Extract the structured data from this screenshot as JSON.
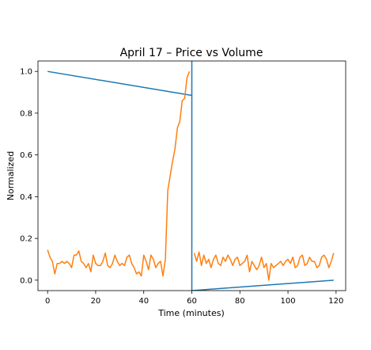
{
  "chart_data": {
    "type": "line",
    "title": "April 17 – Price vs Volume",
    "xlabel": "Time (minutes)",
    "ylabel": "Normalized",
    "xlim": [
      -4,
      124
    ],
    "ylim": [
      -0.05,
      1.05
    ],
    "xticks": [
      0,
      20,
      40,
      60,
      80,
      100,
      120
    ],
    "yticks": [
      0.0,
      0.2,
      0.4,
      0.6,
      0.8,
      1.0
    ],
    "grid": false,
    "legend": "none",
    "series": [
      {
        "color": "#1f77b4",
        "x": [
          0,
          60,
          60,
          60,
          119
        ],
        "y": [
          1.0,
          0.885,
          0.885,
          -0.05,
          0.0
        ],
        "x_precise": [
          0,
          60,
          60,
          60,
          60,
          119
        ],
        "y_precise": [
          1.0,
          0.885,
          1.05,
          0.885,
          -0.05,
          0.0
        ]
      },
      {
        "color": "#ff7f0e",
        "x": [
          0,
          1,
          2,
          3,
          4,
          5,
          6,
          7,
          8,
          9,
          10,
          11,
          12,
          13,
          14,
          15,
          16,
          17,
          18,
          19,
          20,
          21,
          22,
          23,
          24,
          25,
          26,
          27,
          28,
          29,
          30,
          31,
          32,
          33,
          34,
          35,
          36,
          37,
          38,
          39,
          40,
          41,
          42,
          43,
          44,
          45,
          46,
          47,
          48,
          49,
          50,
          51,
          52,
          53,
          54,
          55,
          56,
          57,
          58,
          59
        ],
        "y": [
          0.145,
          0.11,
          0.09,
          0.03,
          0.08,
          0.08,
          0.09,
          0.08,
          0.09,
          0.08,
          0.06,
          0.12,
          0.12,
          0.14,
          0.09,
          0.08,
          0.06,
          0.08,
          0.04,
          0.12,
          0.08,
          0.07,
          0.07,
          0.09,
          0.13,
          0.07,
          0.06,
          0.08,
          0.12,
          0.09,
          0.07,
          0.08,
          0.07,
          0.11,
          0.12,
          0.08,
          0.06,
          0.03,
          0.04,
          0.02,
          0.12,
          0.09,
          0.05,
          0.12,
          0.1,
          0.06,
          0.08,
          0.09,
          0.02,
          0.1,
          0.43,
          0.5,
          0.57,
          0.63,
          0.73,
          0.76,
          0.86,
          0.87,
          0.97,
          1.0
        ]
      },
      {
        "color": "#ff7f0e",
        "x": [
          61,
          62,
          63,
          64,
          65,
          66,
          67,
          68,
          69,
          70,
          71,
          72,
          73,
          74,
          75,
          76,
          77,
          78,
          79,
          80,
          81,
          82,
          83,
          84,
          85,
          86,
          87,
          88,
          89,
          90,
          91,
          92,
          93,
          94,
          95,
          96,
          97,
          98,
          99,
          100,
          101,
          102,
          103,
          104,
          105,
          106,
          107,
          108,
          109,
          110,
          111,
          112,
          113,
          114,
          115,
          116,
          117,
          118,
          119
        ],
        "y": [
          0.13,
          0.09,
          0.135,
          0.07,
          0.12,
          0.08,
          0.1,
          0.06,
          0.1,
          0.12,
          0.08,
          0.07,
          0.11,
          0.09,
          0.12,
          0.1,
          0.07,
          0.1,
          0.11,
          0.07,
          0.08,
          0.09,
          0.12,
          0.04,
          0.09,
          0.07,
          0.05,
          0.07,
          0.11,
          0.06,
          0.08,
          0.0,
          0.08,
          0.06,
          0.07,
          0.08,
          0.09,
          0.07,
          0.09,
          0.1,
          0.08,
          0.11,
          0.06,
          0.07,
          0.11,
          0.12,
          0.07,
          0.08,
          0.11,
          0.09,
          0.09,
          0.06,
          0.07,
          0.11,
          0.12,
          0.1,
          0.06,
          0.09,
          0.13
        ]
      }
    ]
  }
}
